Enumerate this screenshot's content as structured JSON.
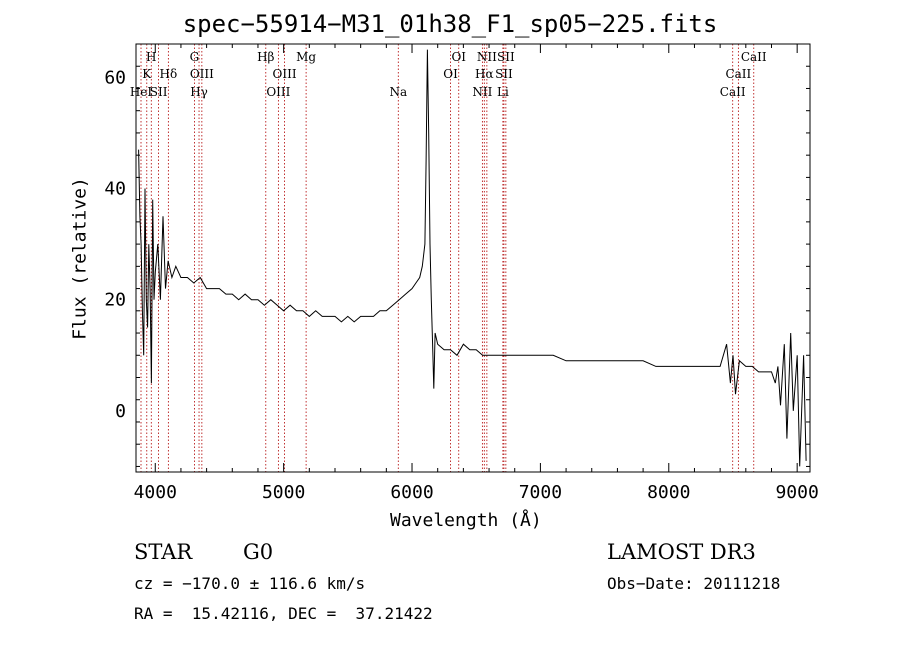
{
  "chart_data": {
    "type": "line",
    "title": "spec−55914−M31_01h38_F1_sp05−225.fits",
    "xlabel": "Wavelength (Å)",
    "ylabel": "Flux (relative)",
    "xlim": [
      3850,
      9100
    ],
    "ylim": [
      -11,
      66
    ],
    "xticks": [
      4000,
      5000,
      6000,
      7000,
      8000,
      9000
    ],
    "yticks": [
      0,
      20,
      40,
      60
    ],
    "series": [
      {
        "x": [
          3870,
          3880,
          3890,
          3900,
          3910,
          3920,
          3930,
          3940,
          3950,
          3960,
          3970,
          3980,
          3990,
          4000,
          4020,
          4040,
          4060,
          4080,
          4100,
          4130,
          4160,
          4200,
          4250,
          4300,
          4350,
          4400,
          4450,
          4500,
          4550,
          4600,
          4650,
          4700,
          4750,
          4800,
          4850,
          4900,
          4950,
          5000,
          5050,
          5100,
          5150,
          5200,
          5250,
          5300,
          5350,
          5400,
          5450,
          5500,
          5550,
          5600,
          5650,
          5700,
          5750,
          5800,
          5850,
          5900,
          5950,
          6000,
          6030,
          6060,
          6080,
          6100,
          6110,
          6120,
          6130,
          6140,
          6150,
          6160,
          6170,
          6180,
          6200,
          6250,
          6300,
          6350,
          6400,
          6450,
          6500,
          6550,
          6600,
          6650,
          6700,
          6800,
          6900,
          7000,
          7100,
          7200,
          7300,
          7400,
          7500,
          7600,
          7700,
          7800,
          7900,
          8000,
          8100,
          8200,
          8300,
          8400,
          8450,
          8480,
          8500,
          8520,
          8550,
          8600,
          8650,
          8700,
          8750,
          8800,
          8830,
          8850,
          8870,
          8900,
          8920,
          8950,
          8970,
          9000,
          9020,
          9050,
          9070
        ],
        "y": [
          47,
          35,
          30,
          18,
          10,
          40,
          20,
          15,
          30,
          22,
          5,
          38,
          20,
          25,
          30,
          20,
          35,
          22,
          27,
          24,
          26,
          24,
          24,
          23,
          24,
          22,
          22,
          22,
          21,
          21,
          20,
          21,
          20,
          20,
          19,
          20,
          19,
          18,
          19,
          18,
          18,
          17,
          18,
          17,
          17,
          17,
          16,
          17,
          16,
          17,
          17,
          17,
          18,
          18,
          19,
          20,
          21,
          22,
          23,
          24,
          26,
          30,
          45,
          65,
          50,
          30,
          20,
          12,
          4,
          14,
          12,
          11,
          11,
          10,
          12,
          11,
          11,
          10,
          10,
          10,
          10,
          10,
          10,
          10,
          10,
          9,
          9,
          9,
          9,
          9,
          9,
          9,
          8,
          8,
          8,
          8,
          8,
          8,
          12,
          5,
          10,
          3,
          9,
          8,
          8,
          7,
          7,
          7,
          5,
          8,
          1,
          12,
          -5,
          14,
          0,
          10,
          -10,
          10,
          -9
        ]
      }
    ],
    "lines": [
      {
        "x": 3889,
        "row": 3,
        "label": "HeI"
      },
      {
        "x": 3934,
        "row": 2,
        "label": "K"
      },
      {
        "x": 3969,
        "row": 1,
        "label": "H"
      },
      {
        "x": 4026,
        "row": 3,
        "label": "SII"
      },
      {
        "x": 4102,
        "row": 2,
        "label": "Hδ"
      },
      {
        "x": 4305,
        "row": 1,
        "label": "G"
      },
      {
        "x": 4341,
        "row": 3,
        "label": "Hγ"
      },
      {
        "x": 4363,
        "row": 2,
        "label": "OIII"
      },
      {
        "x": 4861,
        "row": 1,
        "label": "Hβ"
      },
      {
        "x": 4959,
        "row": 3,
        "label": "OIII"
      },
      {
        "x": 5007,
        "row": 2,
        "label": "OIII"
      },
      {
        "x": 5175,
        "row": 1,
        "label": "Mg"
      },
      {
        "x": 5893,
        "row": 3,
        "label": "Na"
      },
      {
        "x": 6300,
        "row": 2,
        "label": "OI"
      },
      {
        "x": 6364,
        "row": 1,
        "label": "OI"
      },
      {
        "x": 6548,
        "row": 3,
        "label": "NII"
      },
      {
        "x": 6563,
        "row": 2,
        "label": "Hα"
      },
      {
        "x": 6583,
        "row": 1,
        "label": "NII"
      },
      {
        "x": 6708,
        "row": 3,
        "label": "Li"
      },
      {
        "x": 6716,
        "row": 2,
        "label": "SII"
      },
      {
        "x": 6731,
        "row": 1,
        "label": "SII"
      },
      {
        "x": 8498,
        "row": 3,
        "label": "CaII"
      },
      {
        "x": 8542,
        "row": 2,
        "label": "CaII"
      },
      {
        "x": 8662,
        "row": 1,
        "label": "CaII"
      }
    ]
  },
  "info": {
    "class": "STAR",
    "subclass": "G0",
    "survey": "LAMOST DR3",
    "cz": "cz = −170.0 ± 116.6 km/s",
    "obs_date": "Obs−Date: 20111218",
    "radec": "RA =  15.42116, DEC =  37.21422"
  }
}
